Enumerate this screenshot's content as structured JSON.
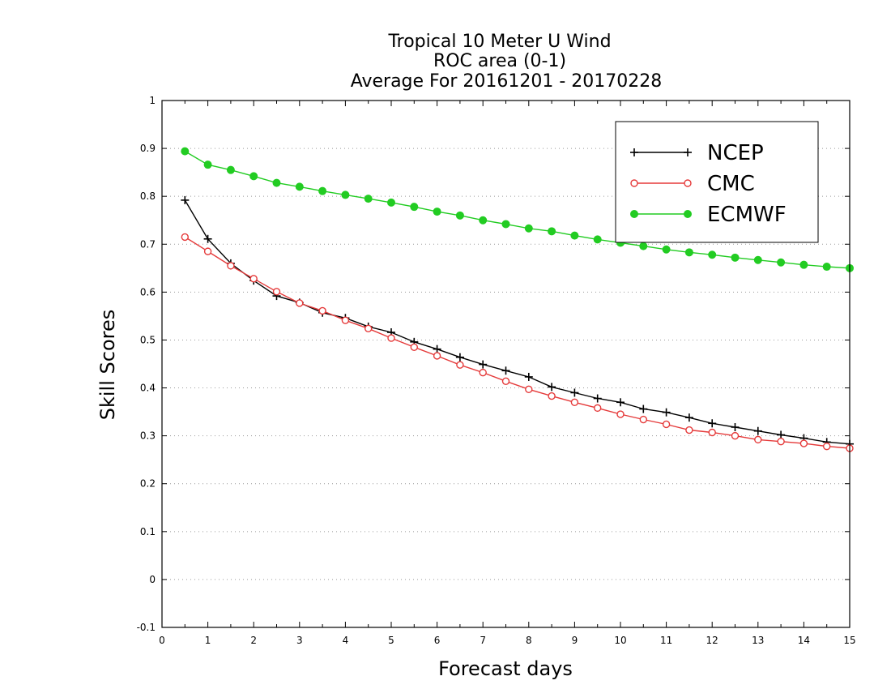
{
  "chart_data": {
    "type": "line",
    "title": [
      "Tropical 10 Meter U Wind",
      "ROC area (0-1)",
      "Average For 20161201 - 20170228"
    ],
    "xlabel": "Forecast days",
    "ylabel": "Skill Scores",
    "xlim": [
      0,
      15
    ],
    "ylim": [
      -0.1,
      1
    ],
    "xticks": [
      0,
      1,
      2,
      3,
      4,
      5,
      6,
      7,
      8,
      9,
      10,
      11,
      12,
      13,
      14,
      15
    ],
    "yticks": [
      -0.1,
      0,
      0.1,
      0.2,
      0.3,
      0.4,
      0.5,
      0.6,
      0.7,
      0.8,
      0.9,
      1
    ],
    "ytick_labels": [
      "-0.1",
      "0",
      "0.1",
      "0.2",
      "0.3",
      "0.4",
      "0.5",
      "0.6",
      "0.7",
      "0.8",
      "0.9",
      "1"
    ],
    "grid": "horizontal-dotted",
    "legend_position": "top-right",
    "x": [
      0.5,
      1,
      1.5,
      2,
      2.5,
      3,
      3.5,
      4,
      4.5,
      5,
      5.5,
      6,
      6.5,
      7,
      7.5,
      8,
      8.5,
      9,
      9.5,
      10,
      10.5,
      11,
      11.5,
      12,
      12.5,
      13,
      13.5,
      14,
      14.5,
      15
    ],
    "series": [
      {
        "name": "NCEP",
        "color": "#000000",
        "marker": "plus",
        "values": [
          0.792,
          0.711,
          0.66,
          0.624,
          0.592,
          0.578,
          0.557,
          0.546,
          0.528,
          0.516,
          0.496,
          0.481,
          0.464,
          0.449,
          0.436,
          0.423,
          0.402,
          0.39,
          0.378,
          0.37,
          0.356,
          0.349,
          0.338,
          0.326,
          0.318,
          0.31,
          0.302,
          0.295,
          0.287,
          0.283
        ]
      },
      {
        "name": "CMC",
        "color": "#e53a3a",
        "marker": "open-circle",
        "values": [
          0.715,
          0.685,
          0.655,
          0.628,
          0.601,
          0.577,
          0.561,
          0.541,
          0.524,
          0.504,
          0.485,
          0.467,
          0.448,
          0.432,
          0.414,
          0.397,
          0.383,
          0.37,
          0.358,
          0.345,
          0.334,
          0.324,
          0.312,
          0.307,
          0.3,
          0.292,
          0.288,
          0.284,
          0.278,
          0.274
        ]
      },
      {
        "name": "ECMWF",
        "color": "#22cc22",
        "marker": "filled-circle",
        "values": [
          0.894,
          0.866,
          0.855,
          0.842,
          0.828,
          0.82,
          0.811,
          0.803,
          0.795,
          0.787,
          0.778,
          0.768,
          0.76,
          0.75,
          0.742,
          0.733,
          0.727,
          0.718,
          0.71,
          0.703,
          0.696,
          0.689,
          0.683,
          0.678,
          0.672,
          0.667,
          0.662,
          0.657,
          0.653,
          0.65
        ]
      }
    ]
  }
}
